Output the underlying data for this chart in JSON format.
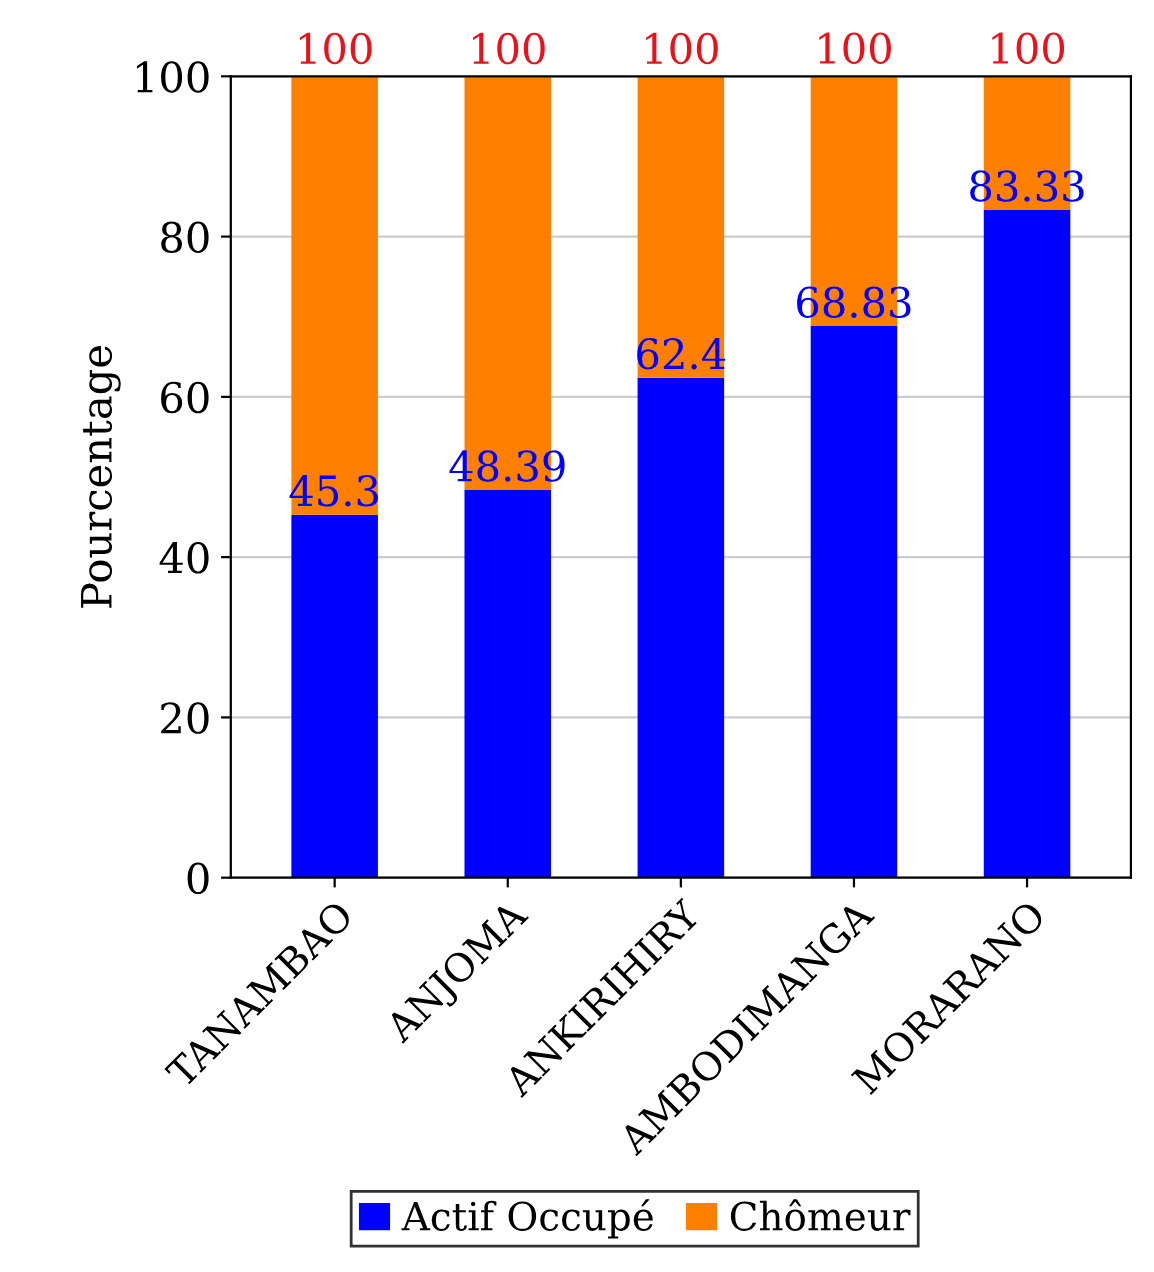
{
  "chart_data": {
    "type": "bar",
    "stacked": true,
    "ylabel": "Pourcentage",
    "categories": [
      "TANAMBAO",
      "ANJOMA",
      "ANKIRIHIRY",
      "AMBODIMANGA",
      "MORARANO"
    ],
    "series": [
      {
        "name": "Actif Occupé",
        "color": "#0000ff",
        "values": [
          45.3,
          48.39,
          62.4,
          68.83,
          83.33
        ],
        "value_labels": [
          "45.3",
          "48.39",
          "62.4",
          "68.83",
          "83.33"
        ]
      },
      {
        "name": "Chômeur",
        "color": "#ff8000",
        "values": [
          54.7,
          51.6,
          37.6,
          31.2,
          16.7
        ]
      }
    ],
    "totals": [
      "100",
      "100",
      "100",
      "100",
      "100"
    ],
    "ylim": [
      0,
      100
    ],
    "yticks": [
      0,
      20,
      40,
      60,
      80,
      100
    ],
    "grid": "y",
    "legend": "bottom"
  }
}
